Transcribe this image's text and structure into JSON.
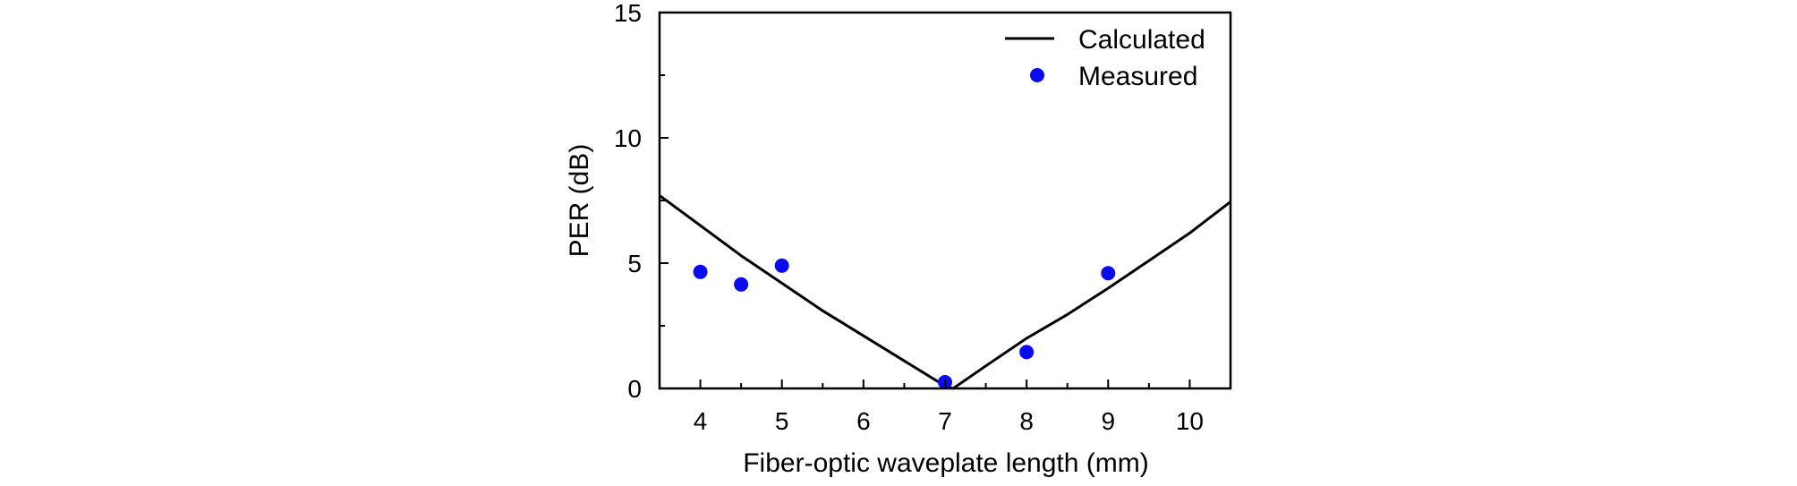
{
  "chart_data": {
    "type": "line+scatter",
    "title": "",
    "xlabel": "Fiber-optic waveplate length (mm)",
    "ylabel": "PER (dB)",
    "xlim": [
      3.5,
      10.5
    ],
    "ylim": [
      0,
      15
    ],
    "xticks": [
      4,
      5,
      6,
      7,
      8,
      9,
      10
    ],
    "xtick_labels": [
      "4",
      "5",
      "6",
      "7",
      "8",
      "9",
      "10"
    ],
    "yticks": [
      0,
      5,
      10,
      15
    ],
    "ytick_labels": [
      "0",
      "5",
      "10",
      "15"
    ],
    "grid": false,
    "legend_position": "top-right",
    "series": [
      {
        "name": "Calculated",
        "kind": "line",
        "color": "#000000",
        "x": [
          3.5,
          4.0,
          4.5,
          5.0,
          5.5,
          6.0,
          6.5,
          7.0,
          7.1,
          7.5,
          8.0,
          8.5,
          9.0,
          9.5,
          10.0,
          10.5
        ],
        "y": [
          7.7,
          6.5,
          5.3,
          4.2,
          3.1,
          2.1,
          1.1,
          0.1,
          0.0,
          0.9,
          2.0,
          2.95,
          4.0,
          5.1,
          6.2,
          7.45
        ]
      },
      {
        "name": "Measured",
        "kind": "scatter",
        "color": "#0b0bf0",
        "x": [
          4.0,
          4.5,
          5.0,
          7.0,
          8.0,
          9.0
        ],
        "y": [
          4.65,
          4.15,
          4.9,
          0.25,
          1.45,
          4.6
        ]
      }
    ]
  }
}
